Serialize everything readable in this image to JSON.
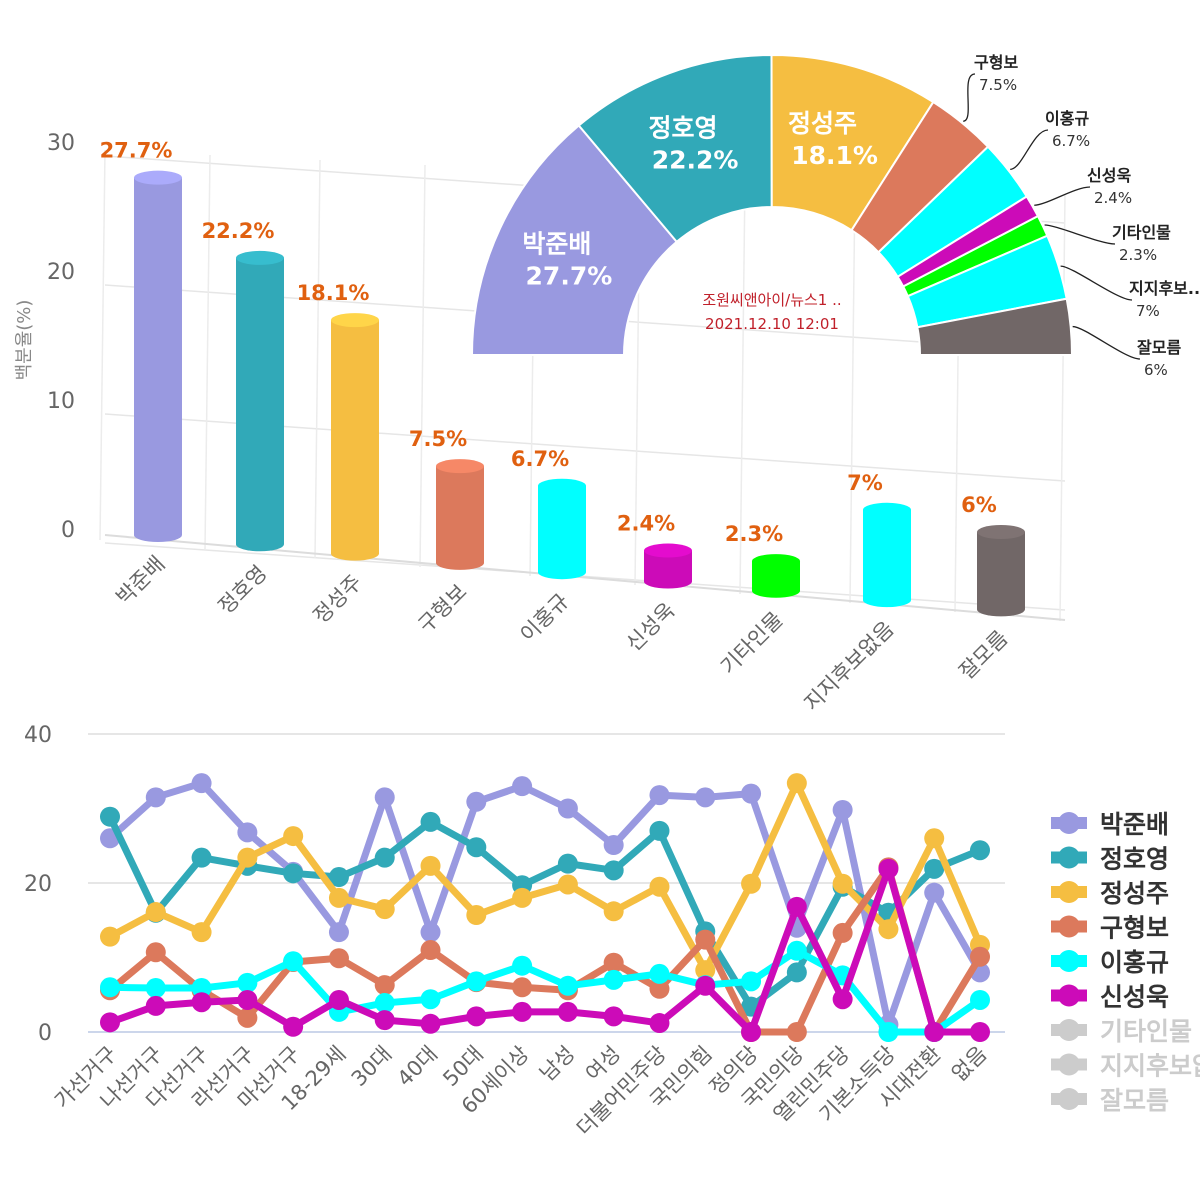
{
  "chart_data": [
    {
      "type": "bar",
      "style": "3d-cylinder",
      "ylabel": "백분율(%)",
      "ylim": [
        0,
        30
      ],
      "yticks": [
        0,
        10,
        20,
        30
      ],
      "categories": [
        "박준배",
        "정호영",
        "정성주",
        "구형보",
        "이홍규",
        "신성욱",
        "기타인물",
        "지지후보없음",
        "잘모름"
      ],
      "values": [
        27.7,
        22.2,
        18.1,
        7.5,
        6.7,
        2.4,
        2.3,
        7,
        6
      ],
      "data_labels": [
        "27.7%",
        "22.2%",
        "18.1%",
        "7.5%",
        "6.7%",
        "2.4%",
        "2.3%",
        "7%",
        "6%"
      ],
      "colors": [
        "#9999e0",
        "#31a9b8",
        "#f5be41",
        "#dc795c",
        "#00ffff",
        "#cc0bb8",
        "#00ff00",
        "#00ffff",
        "#716767"
      ],
      "grid": true
    },
    {
      "type": "pie",
      "style": "half-donut",
      "categories": [
        "박준배",
        "정호영",
        "정성주",
        "구형보",
        "이홍규",
        "신성욱",
        "기타인물",
        "지지후보...",
        "잘모름"
      ],
      "values": [
        27.7,
        22.2,
        18.1,
        7.5,
        6.7,
        2.4,
        2.3,
        7,
        6
      ],
      "data_labels": [
        "27.7%",
        "22.2%",
        "18.1%",
        "7.5%",
        "6.7%",
        "2.4%",
        "2.3%",
        "7%",
        "6%"
      ],
      "colors": [
        "#9999e0",
        "#31a9b8",
        "#f5be41",
        "#dc795c",
        "#00ffff",
        "#cc0bb8",
        "#00ff00",
        "#00ffff",
        "#716767"
      ],
      "center_text": [
        "조원씨앤아이/뉴스1 ..",
        "2021.12.10 12:01"
      ],
      "center_text_color": "#c0202a"
    },
    {
      "type": "line",
      "ylim": [
        0,
        40
      ],
      "yticks": [
        0,
        20,
        40
      ],
      "grid": true,
      "legend_placement": "right",
      "categories": [
        "가선거구",
        "나선거구",
        "다선거구",
        "라선거구",
        "마선거구",
        "18-29세",
        "30대",
        "40대",
        "50대",
        "60세이상",
        "남성",
        "여성",
        "더불어민주당",
        "국민의힘",
        "정의당",
        "국민의당",
        "열린민주당",
        "기본소득당",
        "시대전환",
        "없음"
      ],
      "series": [
        {
          "name": "박준배",
          "color": "#9999e0",
          "visible": true,
          "values": [
            26.0,
            31.5,
            33.4,
            26.8,
            21.5,
            13.4,
            31.5,
            13.4,
            30.9,
            33.0,
            30.0,
            25.1,
            31.8,
            31.5,
            32.0,
            14.0,
            29.8,
            1.0,
            18.7,
            8.0
          ]
        },
        {
          "name": "정호영",
          "color": "#31a9b8",
          "visible": true,
          "values": [
            28.9,
            16.0,
            23.4,
            22.3,
            21.3,
            20.8,
            23.4,
            28.2,
            24.8,
            19.7,
            22.6,
            21.7,
            27.0,
            13.5,
            3.4,
            8.0,
            19.5,
            16.0,
            21.9,
            24.4
          ]
        },
        {
          "name": "정성주",
          "color": "#f5be41",
          "visible": true,
          "values": [
            12.8,
            16.1,
            13.4,
            23.4,
            26.3,
            18.0,
            16.5,
            22.3,
            15.7,
            18.0,
            19.8,
            16.2,
            19.5,
            8.3,
            19.9,
            33.4,
            19.9,
            13.8,
            26.0,
            11.7
          ]
        },
        {
          "name": "구형보",
          "color": "#dc795c",
          "visible": true,
          "values": [
            5.6,
            10.7,
            5.6,
            1.9,
            9.4,
            9.9,
            6.3,
            11.0,
            6.7,
            6.0,
            5.6,
            9.3,
            5.8,
            12.4,
            0,
            0,
            13.3,
            22.1,
            0,
            10.1
          ]
        },
        {
          "name": "이홍규",
          "color": "#00ffff",
          "visible": true,
          "values": [
            6.0,
            5.9,
            5.9,
            6.6,
            9.5,
            2.7,
            3.9,
            4.4,
            6.8,
            8.9,
            6.2,
            7.0,
            7.8,
            6.3,
            6.8,
            10.9,
            7.6,
            0,
            0,
            4.3
          ]
        },
        {
          "name": "신성욱",
          "color": "#cc0bb8",
          "visible": true,
          "values": [
            1.3,
            3.5,
            4.0,
            4.3,
            0.7,
            4.3,
            1.6,
            1.1,
            2.1,
            2.7,
            2.7,
            2.1,
            1.2,
            6.2,
            0,
            16.8,
            4.4,
            21.9,
            0,
            0
          ]
        },
        {
          "name": "기타인물",
          "color": "#cccccc",
          "visible": false
        },
        {
          "name": "지지후보없음",
          "color": "#cccccc",
          "visible": false
        },
        {
          "name": "잘모름",
          "color": "#cccccc",
          "visible": false
        }
      ]
    }
  ]
}
